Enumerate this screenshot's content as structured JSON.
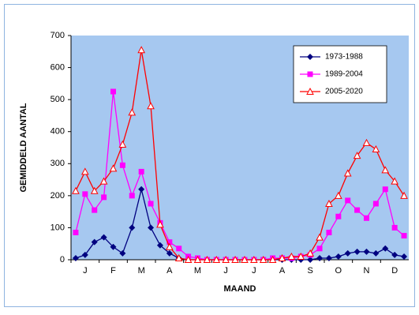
{
  "chart_data": {
    "type": "line",
    "ylabel": "GEMIDDELD AANTAL",
    "xlabel": "MAAND",
    "categories": [
      null,
      "J",
      null,
      null,
      "F",
      null,
      null,
      "M",
      null,
      null,
      "A",
      null,
      null,
      "M",
      null,
      null,
      "J",
      null,
      null,
      "J",
      null,
      null,
      "A",
      null,
      null,
      "S",
      null,
      null,
      "O",
      null,
      null,
      "N",
      null,
      null,
      "D",
      null
    ],
    "series": [
      {
        "name": "1973-1988",
        "color": "#000080",
        "marker": "diamond",
        "values": [
          5,
          15,
          55,
          70,
          40,
          20,
          100,
          220,
          100,
          45,
          20,
          5,
          0,
          0,
          0,
          0,
          0,
          0,
          0,
          0,
          0,
          0,
          0,
          0,
          0,
          0,
          5,
          5,
          10,
          20,
          25,
          25,
          20,
          35,
          15,
          10
        ]
      },
      {
        "name": "1989-2004",
        "color": "#ff00ff",
        "marker": "square",
        "values": [
          85,
          205,
          155,
          195,
          525,
          295,
          200,
          275,
          175,
          115,
          55,
          35,
          10,
          5,
          0,
          0,
          0,
          0,
          0,
          0,
          0,
          5,
          5,
          5,
          10,
          15,
          35,
          85,
          135,
          185,
          155,
          130,
          175,
          220,
          100,
          75
        ]
      },
      {
        "name": "2005-2020",
        "color": "#ff0000",
        "marker": "triangle",
        "values": [
          215,
          275,
          215,
          245,
          285,
          360,
          460,
          655,
          480,
          110,
          40,
          5,
          0,
          0,
          0,
          0,
          0,
          0,
          0,
          0,
          0,
          0,
          5,
          10,
          10,
          20,
          70,
          175,
          200,
          270,
          325,
          365,
          345,
          280,
          245,
          200
        ]
      }
    ],
    "ylim": [
      0,
      700
    ],
    "yticks": [
      0,
      100,
      200,
      300,
      400,
      500,
      600,
      700
    ],
    "grid": false,
    "legend": "upper right"
  }
}
